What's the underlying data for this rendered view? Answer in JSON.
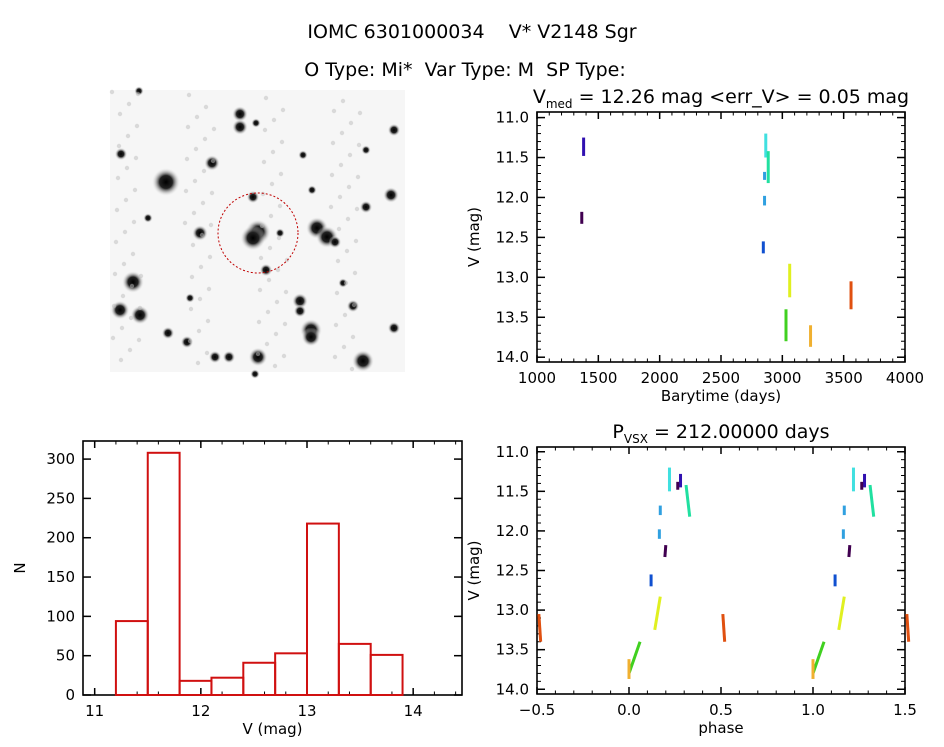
{
  "header": {
    "title": "IOMC 6301000034    V* V2148 Sgr",
    "subtitle": "O Type: Mi*  Var Type: M  SP Type:"
  },
  "image_panel": {
    "kind": "finder chart",
    "marker_color": "#c00000"
  },
  "chart_data": [
    {
      "id": "lightcurve",
      "type": "scatter",
      "title_main": "V",
      "title_sub": "med",
      "title_rest": " = 12.26 mag <err_V> = 0.05 mag",
      "xlabel": "Barytime (days)",
      "ylabel": "V (mag)",
      "xlim": [
        1000,
        4000
      ],
      "ylim": [
        14.06,
        10.93
      ],
      "y_inverted": true,
      "xticks": [
        1000,
        1500,
        2000,
        2500,
        3000,
        3500,
        4000
      ],
      "yticks": [
        "11.0",
        "11.5",
        "12.0",
        "12.5",
        "13.0",
        "13.5",
        "14.0"
      ],
      "segments": [
        {
          "x": 1380,
          "y": [
            11.25,
            11.48
          ],
          "color": "#3010b0"
        },
        {
          "x": 1365,
          "y": [
            12.18,
            12.33
          ],
          "color": "#400050"
        },
        {
          "x": 2865,
          "y": [
            11.2,
            11.5
          ],
          "color": "#40e0e0"
        },
        {
          "x": 2885,
          "y": [
            11.42,
            11.82
          ],
          "color": "#20e0a0"
        },
        {
          "x": 2855,
          "y": [
            11.68,
            11.78
          ],
          "color": "#30a0e0"
        },
        {
          "x": 2855,
          "y": [
            11.98,
            12.1
          ],
          "color": "#30a0e0"
        },
        {
          "x": 2845,
          "y": [
            12.55,
            12.7
          ],
          "color": "#1050d0"
        },
        {
          "x": 3060,
          "y": [
            12.83,
            13.25
          ],
          "color": "#e0f020"
        },
        {
          "x": 3030,
          "y": [
            13.4,
            13.8
          ],
          "color": "#40d020"
        },
        {
          "x": 3230,
          "y": [
            13.6,
            13.87
          ],
          "color": "#f0b030"
        },
        {
          "x": 3560,
          "y": [
            13.05,
            13.4
          ],
          "color": "#e05010"
        }
      ]
    },
    {
      "id": "histogram",
      "type": "bar",
      "xlabel": "V (mag)",
      "ylabel": "N",
      "xlim": [
        10.89,
        14.46
      ],
      "ylim": [
        0,
        323
      ],
      "xticks": [
        11,
        12,
        13,
        14
      ],
      "yticks": [
        0,
        50,
        100,
        150,
        200,
        250,
        300
      ],
      "bin_edges": [
        11.2,
        11.5,
        11.8,
        12.1,
        12.4,
        12.7,
        13.0,
        13.3,
        13.6,
        13.9
      ],
      "values": [
        94,
        308,
        18,
        22,
        41,
        53,
        218,
        65,
        51
      ],
      "bar_color": "#d01010"
    },
    {
      "id": "phased",
      "type": "scatter",
      "title_main": "P",
      "title_sub": "VSX",
      "title_rest": " = 212.00000 days",
      "xlabel": "phase",
      "ylabel": "V (mag)",
      "xlim": [
        -0.5,
        1.5
      ],
      "ylim": [
        14.06,
        10.94
      ],
      "y_inverted": true,
      "xticks": [
        "-0.5",
        "0.0",
        "0.5",
        "1.0",
        "1.5"
      ],
      "yticks": [
        "11.0",
        "11.5",
        "12.0",
        "12.5",
        "13.0",
        "13.5",
        "14.0"
      ],
      "period_days": 212.0,
      "segments": [
        {
          "x": [
            0.22,
            0.22
          ],
          "y": [
            11.2,
            11.5
          ],
          "color": "#40e0e0"
        },
        {
          "x": [
            0.28,
            0.28
          ],
          "y": [
            11.28,
            11.45
          ],
          "color": "#3010b0"
        },
        {
          "x": [
            0.265,
            0.265
          ],
          "y": [
            11.38,
            11.48
          ],
          "color": "#400050"
        },
        {
          "x": [
            0.31,
            0.33
          ],
          "y": [
            11.42,
            11.82
          ],
          "color": "#20e0a0"
        },
        {
          "x": [
            0.17,
            0.17
          ],
          "y": [
            11.68,
            11.8
          ],
          "color": "#30a0e0"
        },
        {
          "x": [
            0.165,
            0.165
          ],
          "y": [
            11.98,
            12.1
          ],
          "color": "#30a0e0"
        },
        {
          "x": [
            0.2,
            0.195
          ],
          "y": [
            12.18,
            12.33
          ],
          "color": "#400050"
        },
        {
          "x": [
            0.12,
            0.12
          ],
          "y": [
            12.55,
            12.7
          ],
          "color": "#1050d0"
        },
        {
          "x": [
            0.17,
            0.14
          ],
          "y": [
            12.83,
            13.25
          ],
          "color": "#e0f020"
        },
        {
          "x": [
            0.06,
            0.0
          ],
          "y": [
            13.4,
            13.8
          ],
          "color": "#40d020"
        },
        {
          "x": [
            0.0,
            0.0
          ],
          "y": [
            13.62,
            13.87
          ],
          "color": "#f0b030"
        },
        {
          "x": [
            0.51,
            0.52
          ],
          "y": [
            13.05,
            13.4
          ],
          "color": "#e05010"
        }
      ]
    }
  ]
}
